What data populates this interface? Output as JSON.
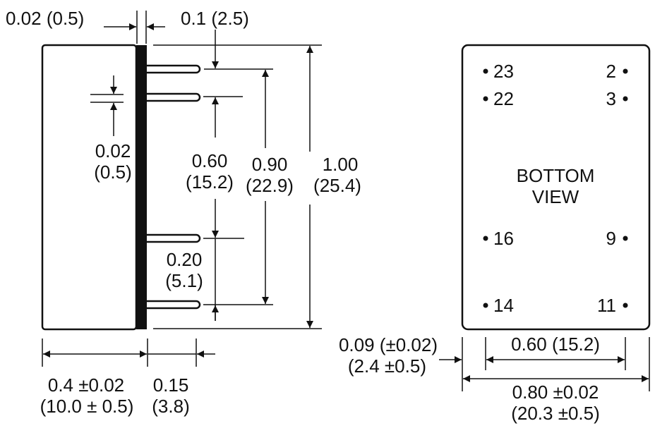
{
  "side_view": {
    "pcb_thickness": {
      "inch": "0.02 (0.5)"
    },
    "pin_offset": {
      "inch": "0.1 (2.5)"
    },
    "pin_diameter": {
      "inch": "0.02",
      "mm": "(0.5)"
    },
    "pin_span_060": {
      "inch": "0.60",
      "mm": "(15.2)"
    },
    "pin_span_090": {
      "inch": "0.90",
      "mm": "(22.9)"
    },
    "height": {
      "inch": "1.00",
      "mm": "(25.4)"
    },
    "pin_pitch_020": {
      "inch": "0.20",
      "mm": "(5.1)"
    },
    "depth": {
      "inch": "0.4 ±0.02",
      "mm": "(10.0 ± 0.5)"
    },
    "pin_length": {
      "inch": "0.15",
      "mm": "(3.8)"
    }
  },
  "bottom_view": {
    "title_line1": "BOTTOM",
    "title_line2": "VIEW",
    "pins_left": [
      "23",
      "22",
      "16",
      "14"
    ],
    "pins_right": [
      "2",
      "3",
      "9",
      "11"
    ],
    "edge_offset": {
      "inch": "0.09 (±0.02)",
      "mm": "(2.4 ±0.5)"
    },
    "pin_row_span": "0.60 (15.2)",
    "width": {
      "inch": "0.80 ±0.02",
      "mm": "(20.3 ±0.5)"
    }
  },
  "colors": {
    "line": "#111111",
    "background": "#ffffff"
  }
}
